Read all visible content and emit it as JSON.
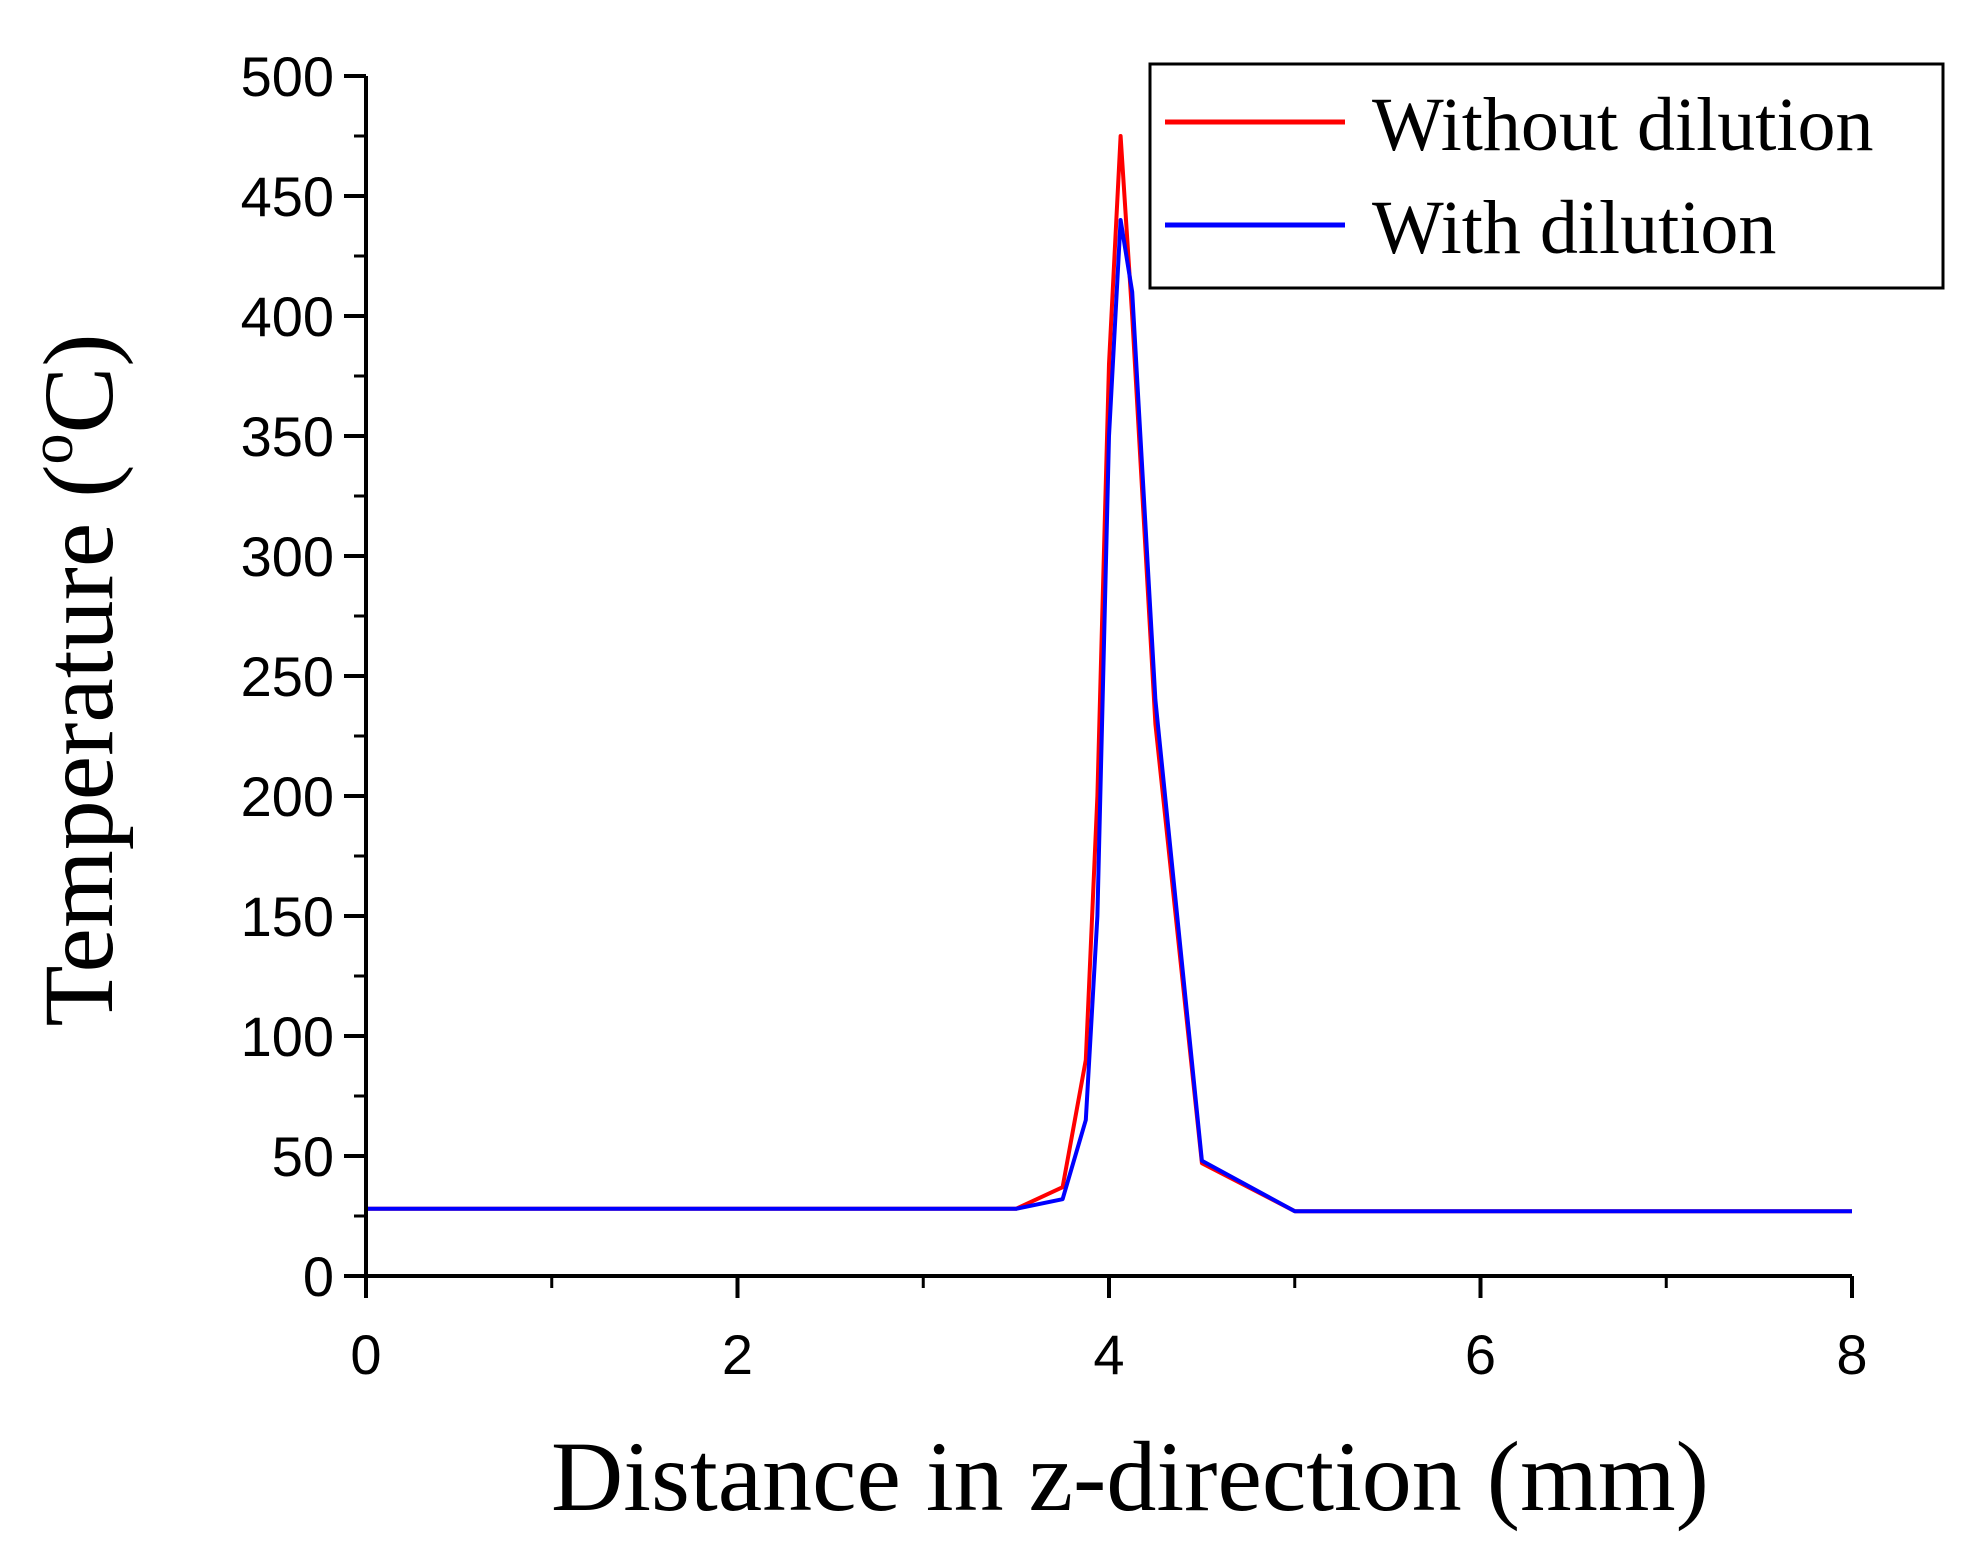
{
  "chart_data": {
    "type": "line",
    "title": "",
    "xlabel": "Distance in z-direction (mm)",
    "ylabel": "Temperature (",
    "ylabel_sup": "o",
    "ylabel_unit": "C)",
    "xlim": [
      0,
      8
    ],
    "ylim": [
      0,
      500
    ],
    "xticks": [
      0,
      2,
      4,
      6,
      8
    ],
    "xticklabels": [
      "0",
      "2",
      "4",
      "6",
      "8"
    ],
    "yticks": [
      0,
      50,
      100,
      150,
      200,
      250,
      300,
      350,
      400,
      450,
      500
    ],
    "yticklabels": [
      "0",
      "50",
      "100",
      "150",
      "200",
      "250",
      "300",
      "350",
      "400",
      "450",
      "500"
    ],
    "grid": false,
    "legend_position": "top-right",
    "series": [
      {
        "name": "Without dilution",
        "color": "#ff0000",
        "x": [
          0,
          3.5,
          3.75,
          3.875,
          3.9375,
          4.0,
          4.0625,
          4.125,
          4.25,
          4.5,
          5.0,
          8.0
        ],
        "y": [
          28,
          28,
          37,
          90,
          200,
          380,
          475,
          400,
          230,
          47,
          27,
          27
        ]
      },
      {
        "name": "With dilution",
        "color": "#0000ff",
        "x": [
          0,
          3.5,
          3.75,
          3.875,
          3.9375,
          4.0,
          4.0625,
          4.125,
          4.25,
          4.5,
          5.0,
          8.0
        ],
        "y": [
          28,
          28,
          32,
          65,
          150,
          350,
          440,
          410,
          240,
          48,
          27,
          27
        ]
      }
    ]
  }
}
